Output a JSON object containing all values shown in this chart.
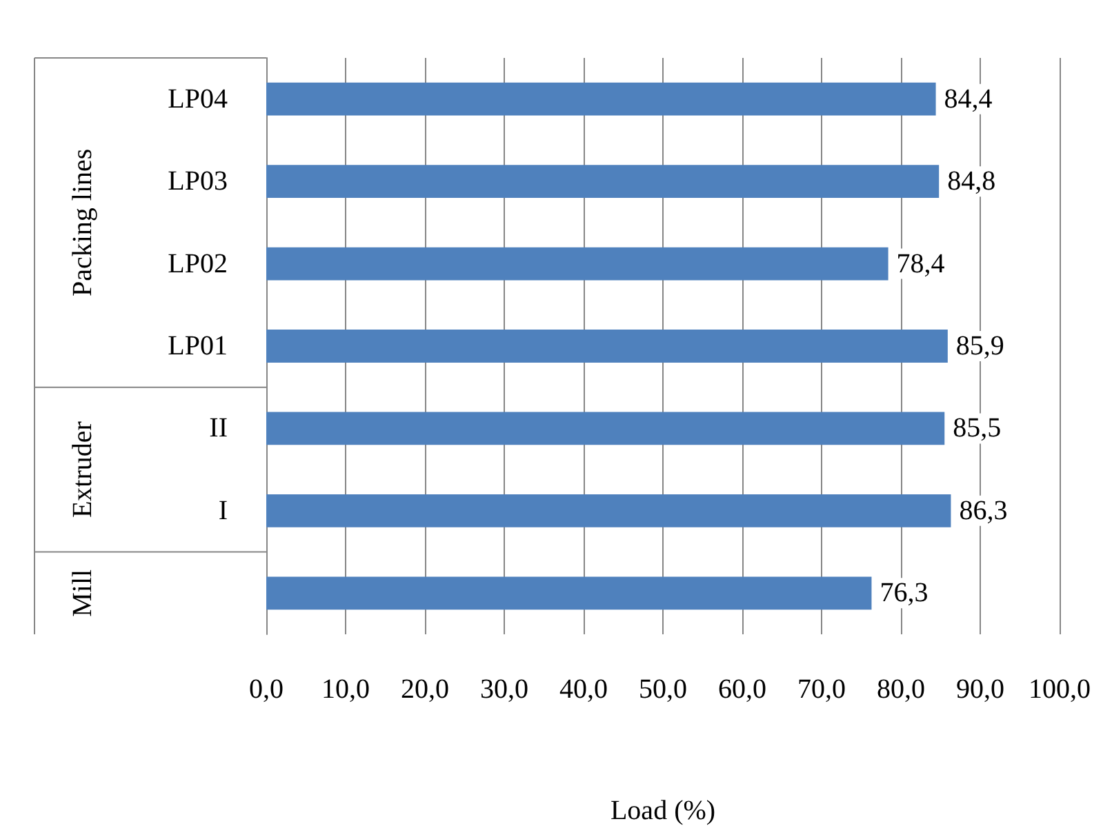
{
  "chart_data": {
    "type": "bar",
    "orientation": "horizontal",
    "xlabel": "Load (%)",
    "categories": [
      "LP04",
      "LP03",
      "LP02",
      "LP01",
      "II",
      "I",
      null
    ],
    "values": [
      84.4,
      84.8,
      78.4,
      85.9,
      85.5,
      86.3,
      76.3
    ],
    "value_labels": [
      "84,4",
      "84,8",
      "78,4",
      "85,9",
      "85,5",
      "86,3",
      "76,3"
    ],
    "color": "#4f81bd",
    "xlim": [
      0,
      100
    ],
    "xticks": [
      {
        "value": 0,
        "label": "0,0"
      },
      {
        "value": 10,
        "label": "10,0"
      },
      {
        "value": 20,
        "label": "20,0"
      },
      {
        "value": 30,
        "label": "30,0"
      },
      {
        "value": 40,
        "label": "40,0"
      },
      {
        "value": 50,
        "label": "50,0"
      },
      {
        "value": 60,
        "label": "60,0"
      },
      {
        "value": 70,
        "label": "70,0"
      },
      {
        "value": 80,
        "label": "80,0"
      },
      {
        "value": 90,
        "label": "90,0"
      },
      {
        "value": 100,
        "label": "100,0"
      }
    ],
    "grid": "x",
    "annotations": [
      "Packing lines",
      "Extruder",
      "Mill"
    ]
  }
}
